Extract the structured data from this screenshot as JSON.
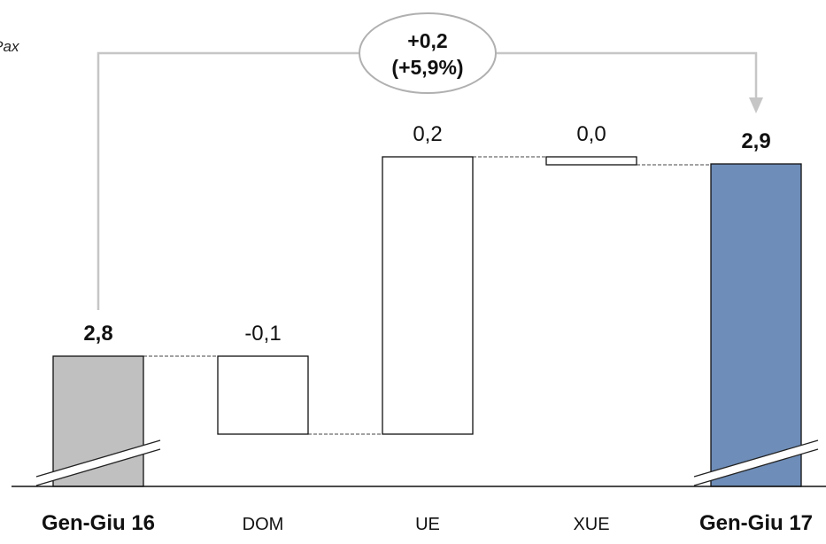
{
  "chart_data": {
    "type": "waterfall",
    "unit": "€/Pax",
    "categories": [
      "Gen-Giu 16",
      "DOM",
      "UE",
      "XUE",
      "Gen-Giu 17"
    ],
    "values": [
      2.8,
      -0.1,
      0.2,
      0.0,
      2.9
    ],
    "value_labels": [
      "2,8",
      "-0,1",
      "0,2",
      "0,0",
      "2,9"
    ],
    "bar_kind": [
      "total",
      "delta",
      "delta",
      "delta",
      "total"
    ],
    "bold_categories": [
      true,
      false,
      false,
      false,
      true
    ],
    "axis_break": true,
    "total_change": {
      "value": 0.2,
      "percent": 5.9,
      "line1": "+0,2",
      "line2": "(+5,9%)"
    },
    "colors": {
      "start_total": "#c0c0c0",
      "end_total": "#6e8db8",
      "delta": "#ffffff",
      "outline": "#111111",
      "connector": "#444444",
      "arrow": "#c6c6c6"
    }
  }
}
